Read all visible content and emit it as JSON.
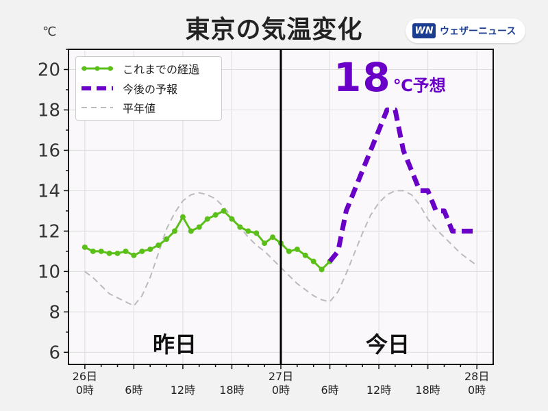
{
  "title": "東京の気温変化",
  "unit": "℃",
  "brand": {
    "logo_text": "WN",
    "name": "ウェザーニュース"
  },
  "forecast_callout": {
    "value": "18",
    "suffix": "℃予想"
  },
  "day_labels": {
    "yesterday": "昨日",
    "today": "今日"
  },
  "colors": {
    "observed": "#5bbf1a",
    "forecast": "#6a00c8",
    "normal": "#bbbbbb",
    "divider": "#000000",
    "plot_bg": "#faf8fa"
  },
  "chart_data": {
    "type": "line",
    "xlabel": "",
    "ylabel": "℃",
    "ylim": [
      5.4,
      21.0
    ],
    "xlim": [
      -2,
      50
    ],
    "yticks": [
      6,
      8,
      10,
      12,
      14,
      16,
      18,
      20
    ],
    "xticks": [
      {
        "hour": 0,
        "line1": "26日",
        "line2": "0時"
      },
      {
        "hour": 6,
        "line1": "",
        "line2": "6時"
      },
      {
        "hour": 12,
        "line1": "",
        "line2": "12時"
      },
      {
        "hour": 18,
        "line1": "",
        "line2": "18時"
      },
      {
        "hour": 24,
        "line1": "27日",
        "line2": "0時"
      },
      {
        "hour": 30,
        "line1": "",
        "line2": "6時"
      },
      {
        "hour": 36,
        "line1": "",
        "line2": "12時"
      },
      {
        "hour": 42,
        "line1": "",
        "line2": "18時"
      },
      {
        "hour": 48,
        "line1": "28日",
        "line2": "0時"
      }
    ],
    "divider_hour": 24,
    "grid": true,
    "legend_position": "top-left",
    "series": [
      {
        "name": "これまでの経過",
        "style": "solid-markers",
        "x": [
          0,
          1,
          2,
          3,
          4,
          5,
          6,
          7,
          8,
          9,
          10,
          11,
          12,
          13,
          14,
          15,
          16,
          17,
          18,
          19,
          20,
          21,
          22,
          23,
          24,
          25,
          26,
          27,
          28,
          29,
          30
        ],
        "y": [
          11.2,
          11.0,
          11.0,
          10.9,
          10.9,
          11.0,
          10.8,
          11.0,
          11.1,
          11.3,
          11.6,
          12.0,
          12.7,
          12.0,
          12.2,
          12.6,
          12.8,
          13.0,
          12.6,
          12.2,
          12.0,
          11.9,
          11.4,
          11.7,
          11.4,
          11.0,
          11.1,
          10.8,
          10.5,
          10.1,
          10.5
        ]
      },
      {
        "name": "今後の予報",
        "style": "dashed-thick",
        "x": [
          30,
          31,
          32,
          33,
          34,
          35,
          36,
          37,
          38,
          39,
          40,
          41,
          42,
          43,
          44,
          45,
          46,
          47,
          48
        ],
        "y": [
          10.5,
          11.0,
          13.0,
          14.0,
          15.0,
          16.0,
          17.0,
          18.0,
          18.0,
          16.0,
          15.0,
          14.0,
          14.0,
          13.0,
          13.0,
          12.0,
          12.0,
          12.0,
          12.0
        ]
      },
      {
        "name": "平年値",
        "style": "dashed-thin",
        "x": [
          0,
          1,
          2,
          3,
          4,
          5,
          6,
          7,
          8,
          9,
          10,
          11,
          12,
          13,
          14,
          15,
          16,
          17,
          18,
          19,
          20,
          21,
          22,
          23,
          24,
          25,
          26,
          27,
          28,
          29,
          30,
          31,
          32,
          33,
          34,
          35,
          36,
          37,
          38,
          39,
          40,
          41,
          42,
          43,
          44,
          45,
          46,
          47,
          48
        ],
        "y": [
          10.0,
          9.7,
          9.3,
          8.9,
          8.7,
          8.5,
          8.3,
          8.8,
          9.7,
          10.9,
          12.1,
          12.9,
          13.5,
          13.8,
          13.9,
          13.8,
          13.6,
          13.2,
          12.7,
          12.2,
          11.7,
          11.3,
          11.0,
          10.6,
          10.2,
          9.8,
          9.4,
          9.1,
          8.8,
          8.6,
          8.5,
          9.0,
          9.9,
          10.9,
          11.9,
          12.8,
          13.4,
          13.8,
          14.0,
          14.0,
          13.8,
          13.3,
          12.6,
          12.1,
          11.7,
          11.3,
          10.9,
          10.6,
          10.3
        ]
      }
    ]
  }
}
